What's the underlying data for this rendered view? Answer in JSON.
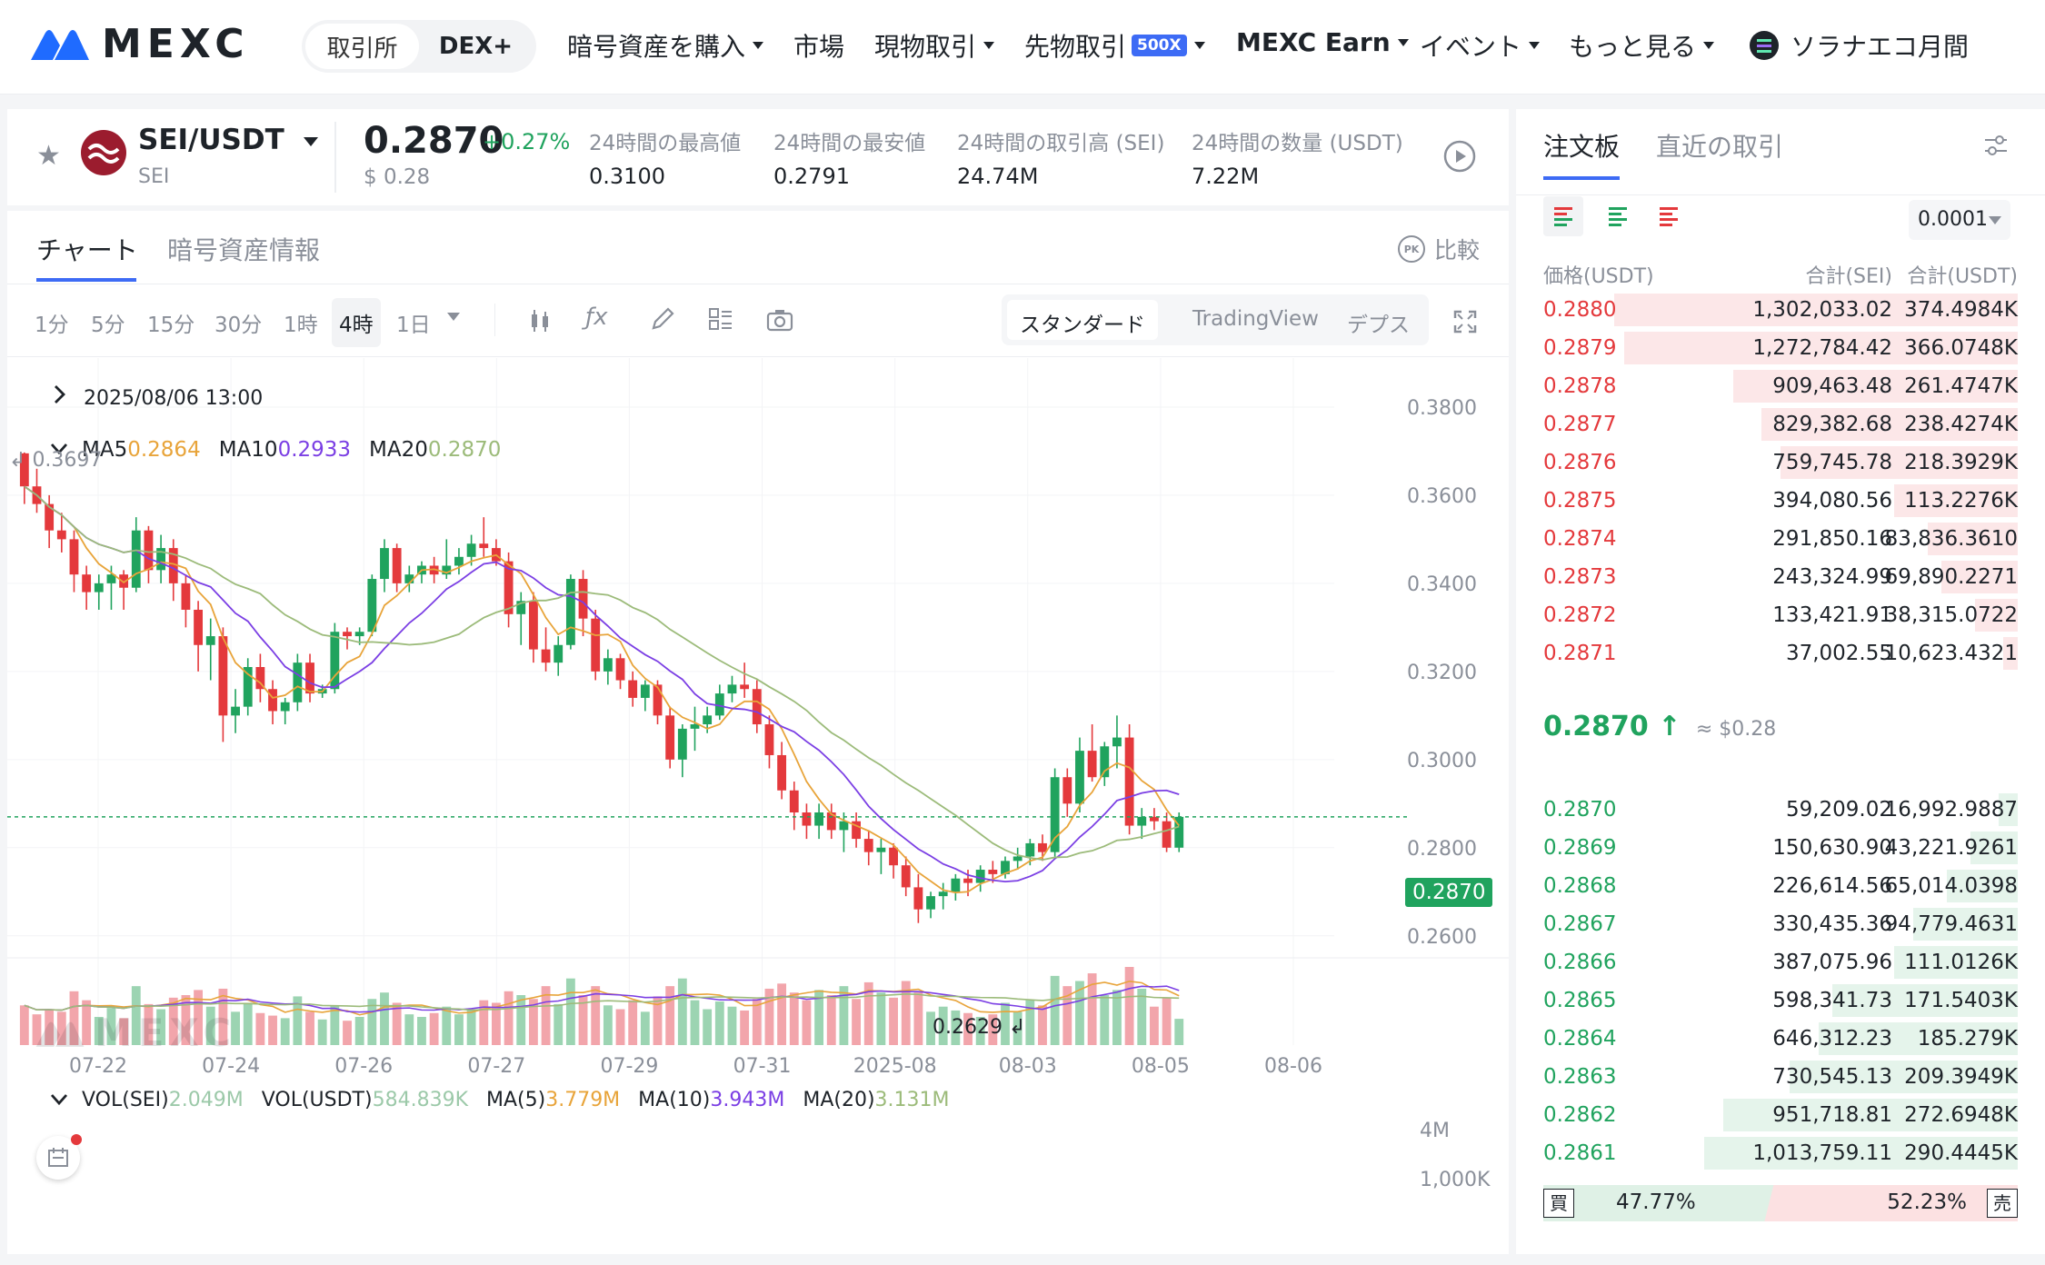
{
  "nav": {
    "logo": "MEXC",
    "exchange": "取引所",
    "dex": "DEX+",
    "buy_crypto": "暗号資産を購入",
    "markets": "市場",
    "spot": "現物取引",
    "futures": "先物取引",
    "futures_badge": "500X",
    "earn": "MEXC Earn",
    "events": "イベント",
    "more": "もっと見る",
    "promo": "ソラナエコ月間"
  },
  "ticker": {
    "pair": "SEI/USDT",
    "base": "SEI",
    "price": "0.2870",
    "change": "+0.27%",
    "usd_price": "$ 0.28",
    "stats": [
      {
        "label": "24時間の最高値",
        "value": "0.3100"
      },
      {
        "label": "24時間の最安値",
        "value": "0.2791"
      },
      {
        "label": "24時間の取引高 (SEI)",
        "value": "24.74M"
      },
      {
        "label": "24時間の数量 (USDT)",
        "value": "7.22M"
      }
    ]
  },
  "chart_tabs": {
    "chart": "チャート",
    "info": "暗号資産情報",
    "compare": "比較"
  },
  "intervals": [
    "1分",
    "5分",
    "15分",
    "30分",
    "1時",
    "4時",
    "1日"
  ],
  "active_interval": "4時",
  "view_modes": [
    "スタンダード",
    "TradingView",
    "デプス"
  ],
  "chart_info": {
    "date": "2025/08/06 13:00",
    "ma5_label": "MA5",
    "ma5": "0.2864",
    "ma10_label": "MA10",
    "ma10": "0.2933",
    "ma20_label": "MA20",
    "ma20": "0.2870",
    "high_marker": "0.3697",
    "low_marker": "0.2629",
    "last_price_tag": "0.2870",
    "vol_sei_label": "VOL(SEI)",
    "vol_sei": "2.049M",
    "vol_usdt_label": "VOL(USDT)",
    "vol_usdt": "584.839K",
    "vma5_label": "MA(5)",
    "vma5": "3.779M",
    "vma10_label": "MA(10)",
    "vma10": "3.943M",
    "vma20_label": "MA(20)",
    "vma20": "3.131M",
    "vol_ticks": [
      "4M",
      "1,000K"
    ],
    "watermark": "MEXC"
  },
  "colors": {
    "up": "#20a35e",
    "down": "#e4393c",
    "ma5": "#e8a43a",
    "ma10": "#7b3fe4",
    "ma20": "#9cbb7a",
    "accent": "#3d6bf5"
  },
  "chart_data": {
    "type": "candlestick",
    "x_ticks": [
      "07-22",
      "07-24",
      "07-26",
      "07-27",
      "07-29",
      "07-31",
      "2025-08",
      "08-03",
      "08-05",
      "08-06"
    ],
    "y_ticks": [
      "0.3800",
      "0.3600",
      "0.3400",
      "0.3200",
      "0.3000",
      "0.2800",
      "0.2600"
    ],
    "ylim": [
      0.255,
      0.387
    ],
    "candles": [
      [
        0.3695,
        0.3697,
        0.358,
        0.362
      ],
      [
        0.362,
        0.366,
        0.356,
        0.358
      ],
      [
        0.358,
        0.36,
        0.348,
        0.352
      ],
      [
        0.352,
        0.356,
        0.347,
        0.35
      ],
      [
        0.35,
        0.352,
        0.338,
        0.342
      ],
      [
        0.342,
        0.344,
        0.334,
        0.338
      ],
      [
        0.338,
        0.342,
        0.334,
        0.34
      ],
      [
        0.34,
        0.344,
        0.334,
        0.342
      ],
      [
        0.342,
        0.343,
        0.334,
        0.339
      ],
      [
        0.339,
        0.355,
        0.338,
        0.352
      ],
      [
        0.352,
        0.353,
        0.34,
        0.343
      ],
      [
        0.343,
        0.351,
        0.34,
        0.348
      ],
      [
        0.348,
        0.35,
        0.336,
        0.34
      ],
      [
        0.34,
        0.342,
        0.33,
        0.334
      ],
      [
        0.334,
        0.336,
        0.32,
        0.326
      ],
      [
        0.326,
        0.332,
        0.318,
        0.328
      ],
      [
        0.328,
        0.33,
        0.304,
        0.31
      ],
      [
        0.31,
        0.316,
        0.306,
        0.312
      ],
      [
        0.312,
        0.323,
        0.31,
        0.321
      ],
      [
        0.321,
        0.324,
        0.313,
        0.316
      ],
      [
        0.316,
        0.318,
        0.308,
        0.311
      ],
      [
        0.311,
        0.314,
        0.308,
        0.313
      ],
      [
        0.313,
        0.324,
        0.311,
        0.322
      ],
      [
        0.322,
        0.324,
        0.313,
        0.315
      ],
      [
        0.315,
        0.317,
        0.314,
        0.316
      ],
      [
        0.316,
        0.331,
        0.315,
        0.329
      ],
      [
        0.329,
        0.33,
        0.325,
        0.328
      ],
      [
        0.328,
        0.33,
        0.326,
        0.329
      ],
      [
        0.329,
        0.342,
        0.328,
        0.341
      ],
      [
        0.341,
        0.35,
        0.338,
        0.348
      ],
      [
        0.348,
        0.349,
        0.338,
        0.34
      ],
      [
        0.34,
        0.344,
        0.338,
        0.342
      ],
      [
        0.342,
        0.345,
        0.34,
        0.344
      ],
      [
        0.344,
        0.346,
        0.34,
        0.342
      ],
      [
        0.342,
        0.35,
        0.341,
        0.344
      ],
      [
        0.344,
        0.348,
        0.342,
        0.346
      ],
      [
        0.346,
        0.351,
        0.344,
        0.349
      ],
      [
        0.349,
        0.355,
        0.346,
        0.348
      ],
      [
        0.348,
        0.35,
        0.344,
        0.345
      ],
      [
        0.345,
        0.347,
        0.33,
        0.333
      ],
      [
        0.333,
        0.338,
        0.326,
        0.336
      ],
      [
        0.336,
        0.338,
        0.322,
        0.325
      ],
      [
        0.325,
        0.33,
        0.32,
        0.322
      ],
      [
        0.322,
        0.328,
        0.319,
        0.326
      ],
      [
        0.326,
        0.342,
        0.325,
        0.341
      ],
      [
        0.341,
        0.343,
        0.328,
        0.332
      ],
      [
        0.332,
        0.334,
        0.318,
        0.32
      ],
      [
        0.32,
        0.325,
        0.317,
        0.323
      ],
      [
        0.323,
        0.324,
        0.316,
        0.318
      ],
      [
        0.318,
        0.32,
        0.312,
        0.314
      ],
      [
        0.314,
        0.318,
        0.311,
        0.317
      ],
      [
        0.317,
        0.318,
        0.308,
        0.31
      ],
      [
        0.31,
        0.312,
        0.298,
        0.3
      ],
      [
        0.3,
        0.308,
        0.296,
        0.307
      ],
      [
        0.307,
        0.312,
        0.302,
        0.308
      ],
      [
        0.308,
        0.312,
        0.306,
        0.31
      ],
      [
        0.31,
        0.317,
        0.309,
        0.315
      ],
      [
        0.315,
        0.319,
        0.313,
        0.317
      ],
      [
        0.317,
        0.322,
        0.314,
        0.316
      ],
      [
        0.316,
        0.318,
        0.306,
        0.308
      ],
      [
        0.308,
        0.31,
        0.298,
        0.301
      ],
      [
        0.301,
        0.304,
        0.291,
        0.293
      ],
      [
        0.293,
        0.295,
        0.284,
        0.288
      ],
      [
        0.288,
        0.29,
        0.282,
        0.285
      ],
      [
        0.285,
        0.29,
        0.282,
        0.288
      ],
      [
        0.288,
        0.29,
        0.282,
        0.284
      ],
      [
        0.284,
        0.288,
        0.279,
        0.286
      ],
      [
        0.286,
        0.288,
        0.28,
        0.282
      ],
      [
        0.282,
        0.284,
        0.276,
        0.279
      ],
      [
        0.279,
        0.282,
        0.274,
        0.28
      ],
      [
        0.28,
        0.281,
        0.273,
        0.276
      ],
      [
        0.276,
        0.278,
        0.269,
        0.271
      ],
      [
        0.271,
        0.274,
        0.2629,
        0.266
      ],
      [
        0.266,
        0.27,
        0.264,
        0.269
      ],
      [
        0.269,
        0.272,
        0.266,
        0.27
      ],
      [
        0.27,
        0.274,
        0.268,
        0.273
      ],
      [
        0.273,
        0.275,
        0.269,
        0.272
      ],
      [
        0.272,
        0.276,
        0.27,
        0.275
      ],
      [
        0.275,
        0.277,
        0.272,
        0.274
      ],
      [
        0.274,
        0.278,
        0.273,
        0.277
      ],
      [
        0.277,
        0.28,
        0.275,
        0.278
      ],
      [
        0.278,
        0.282,
        0.276,
        0.281
      ],
      [
        0.281,
        0.283,
        0.277,
        0.279
      ],
      [
        0.279,
        0.298,
        0.278,
        0.296
      ],
      [
        0.296,
        0.298,
        0.287,
        0.29
      ],
      [
        0.29,
        0.305,
        0.288,
        0.302
      ],
      [
        0.302,
        0.308,
        0.295,
        0.296
      ],
      [
        0.296,
        0.304,
        0.294,
        0.303
      ],
      [
        0.303,
        0.31,
        0.298,
        0.305
      ],
      [
        0.305,
        0.308,
        0.283,
        0.285
      ],
      [
        0.285,
        0.289,
        0.282,
        0.287
      ],
      [
        0.287,
        0.289,
        0.284,
        0.286
      ],
      [
        0.286,
        0.288,
        0.279,
        0.28
      ],
      [
        0.28,
        0.288,
        0.279,
        0.287
      ]
    ],
    "volumes": [
      3.1,
      2.4,
      2.8,
      2.6,
      4.2,
      3.5,
      2.2,
      2.9,
      2.1,
      4.6,
      3.2,
      2.8,
      3.7,
      3.9,
      4.3,
      3.0,
      4.4,
      2.6,
      3.3,
      2.5,
      2.3,
      2.1,
      3.8,
      2.6,
      2.0,
      3.1,
      1.9,
      2.2,
      3.6,
      4.1,
      3.3,
      2.4,
      2.2,
      2.5,
      3.0,
      2.4,
      2.7,
      3.5,
      3.3,
      4.2,
      3.9,
      3.6,
      4.6,
      3.2,
      5.2,
      3.9,
      4.6,
      3.1,
      2.8,
      3.5,
      2.6,
      3.8,
      4.6,
      5.2,
      3.5,
      2.8,
      3.4,
      3.0,
      2.7,
      3.6,
      4.4,
      4.8,
      4.1,
      3.5,
      4.3,
      3.9,
      4.6,
      3.6,
      4.9,
      4.1,
      3.7,
      5.0,
      4.1,
      2.6,
      3.0,
      2.7,
      2.5,
      2.2,
      2.4,
      3.3,
      2.6,
      3.5,
      3.1,
      5.4,
      4.6,
      5.0,
      5.6,
      3.9,
      4.3,
      6.1,
      4.4,
      3.0,
      3.7,
      2.049
    ]
  },
  "orderbook": {
    "tab_book": "注文板",
    "tab_trades": "直近の取引",
    "precision": "0.0001",
    "headers": [
      "価格(USDT)",
      "合計(SEI)",
      "合計(USDT)"
    ],
    "asks": [
      {
        "price": "0.2880",
        "amount": "1,302,033.02",
        "total": "374.4984K",
        "depth": 0.85
      },
      {
        "price": "0.2879",
        "amount": "1,272,784.42",
        "total": "366.0748K",
        "depth": 0.83
      },
      {
        "price": "0.2878",
        "amount": "909,463.48",
        "total": "261.4747K",
        "depth": 0.6
      },
      {
        "price": "0.2877",
        "amount": "829,382.68",
        "total": "238.4274K",
        "depth": 0.54
      },
      {
        "price": "0.2876",
        "amount": "759,745.78",
        "total": "218.3929K",
        "depth": 0.5
      },
      {
        "price": "0.2875",
        "amount": "394,080.56",
        "total": "113.2276K",
        "depth": 0.26
      },
      {
        "price": "0.2874",
        "amount": "291,850.16",
        "total": "83,836.3610",
        "depth": 0.19
      },
      {
        "price": "0.2873",
        "amount": "243,324.99",
        "total": "69,890.2271",
        "depth": 0.16
      },
      {
        "price": "0.2872",
        "amount": "133,421.91",
        "total": "38,315.0722",
        "depth": 0.09
      },
      {
        "price": "0.2871",
        "amount": "37,002.55",
        "total": "10,623.4321",
        "depth": 0.03
      }
    ],
    "mid_price": "0.2870",
    "mid_arrow": "↑",
    "mid_usd": "≈ $0.28",
    "bids": [
      {
        "price": "0.2870",
        "amount": "59,209.02",
        "total": "16,992.9887",
        "depth": 0.04
      },
      {
        "price": "0.2869",
        "amount": "150,630.90",
        "total": "43,221.9261",
        "depth": 0.1
      },
      {
        "price": "0.2868",
        "amount": "226,614.56",
        "total": "65,014.0398",
        "depth": 0.15
      },
      {
        "price": "0.2867",
        "amount": "330,435.36",
        "total": "94,779.4631",
        "depth": 0.22
      },
      {
        "price": "0.2866",
        "amount": "387,075.96",
        "total": "111.0126K",
        "depth": 0.26
      },
      {
        "price": "0.2865",
        "amount": "598,341.73",
        "total": "171.5403K",
        "depth": 0.39
      },
      {
        "price": "0.2864",
        "amount": "646,312.23",
        "total": "185.279K",
        "depth": 0.42
      },
      {
        "price": "0.2863",
        "amount": "730,545.13",
        "total": "209.3949K",
        "depth": 0.48
      },
      {
        "price": "0.2862",
        "amount": "951,718.81",
        "total": "272.6948K",
        "depth": 0.62
      },
      {
        "price": "0.2861",
        "amount": "1,013,759.11",
        "total": "290.4445K",
        "depth": 0.66
      }
    ],
    "buy_label": "買",
    "buy_pct": "47.77%",
    "sell_pct": "52.23%",
    "sell_label": "売",
    "buy_ratio": 0.4777
  }
}
